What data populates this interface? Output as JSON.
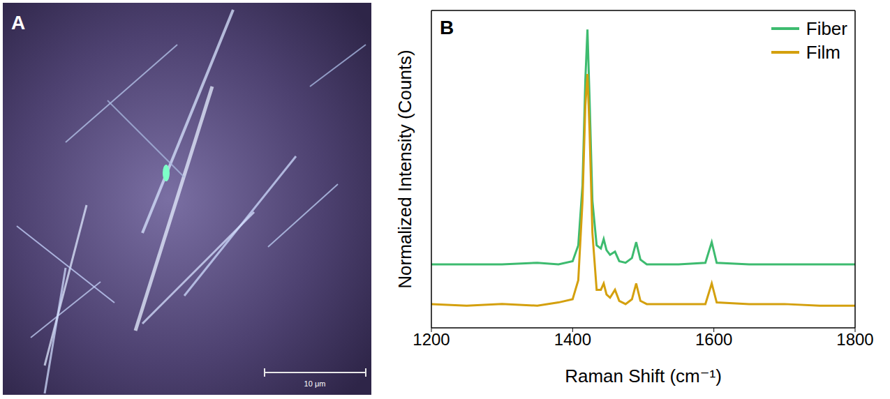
{
  "image": {
    "panel_label": "A",
    "scale_bar_label": "10 μm"
  },
  "chart_data": {
    "type": "line",
    "panel_label": "B",
    "x_label": "Raman Shift (cm⁻¹)",
    "y_label": "Normalized Intensity (Counts)",
    "x": [
      1200,
      1250,
      1300,
      1350,
      1380,
      1400,
      1408,
      1414,
      1418,
      1421,
      1424,
      1428,
      1434,
      1440,
      1444,
      1448,
      1453,
      1460,
      1466,
      1475,
      1484,
      1490,
      1496,
      1505,
      1550,
      1588,
      1597,
      1604,
      1650,
      1700,
      1750,
      1800
    ],
    "series": [
      {
        "name": "Fiber",
        "color": "#3dbb6f",
        "values": [
          0.2,
          0.2,
          0.2,
          0.205,
          0.2,
          0.21,
          0.26,
          0.45,
          0.78,
          0.94,
          0.72,
          0.4,
          0.26,
          0.25,
          0.28,
          0.245,
          0.23,
          0.24,
          0.21,
          0.205,
          0.22,
          0.27,
          0.215,
          0.2,
          0.2,
          0.205,
          0.27,
          0.205,
          0.2,
          0.2,
          0.2,
          0.2
        ]
      },
      {
        "name": "Film",
        "color": "#d4a00e",
        "values": [
          0.075,
          0.07,
          0.075,
          0.07,
          0.08,
          0.09,
          0.15,
          0.4,
          0.7,
          0.8,
          0.62,
          0.3,
          0.12,
          0.12,
          0.14,
          0.105,
          0.095,
          0.12,
          0.085,
          0.075,
          0.09,
          0.14,
          0.085,
          0.075,
          0.075,
          0.075,
          0.14,
          0.08,
          0.075,
          0.075,
          0.07,
          0.07
        ]
      }
    ],
    "xlim": [
      1200,
      1800
    ],
    "xticks": [
      1200,
      1400,
      1600,
      1800
    ],
    "ylim": [
      0,
      1
    ],
    "yticks": [],
    "tick_labels": "x",
    "legend": "upper right",
    "grid": false
  }
}
